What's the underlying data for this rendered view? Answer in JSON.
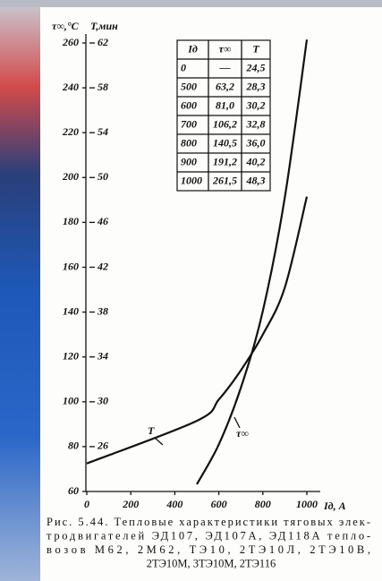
{
  "chart_data": {
    "type": "line",
    "y_label": "τ∞,°C",
    "y2_label": "T,мин",
    "x_label": "Iд, A",
    "x": [
      0,
      500,
      600,
      700,
      800,
      900,
      1000
    ],
    "series": [
      {
        "name": "τ∞",
        "color": "#111111",
        "values": [
          null,
          63.2,
          81.0,
          106.2,
          140.5,
          191.2,
          261.5
        ],
        "value_labels": [
          "—",
          "63,2",
          "81,0",
          "106,2",
          "140,5",
          "191,2",
          "261,5"
        ]
      },
      {
        "name": "T",
        "color": "#111111",
        "axis": "y2",
        "values": [
          24.5,
          28.3,
          30.2,
          32.8,
          36.0,
          40.2,
          48.3
        ],
        "value_labels": [
          "24,5",
          "28,3",
          "30,2",
          "32,8",
          "36,0",
          "40,2",
          "48,3"
        ]
      }
    ],
    "table_x_header": "Iд",
    "xlim": [
      0,
      1000
    ],
    "xticks": [
      0,
      200,
      400,
      600,
      800,
      1000
    ],
    "ylim": [
      60,
      260
    ],
    "yticks": [
      60,
      80,
      100,
      120,
      140,
      160,
      180,
      200,
      220,
      240,
      260
    ],
    "y2lim": [
      22,
      62
    ],
    "y2ticks": [
      26,
      30,
      34,
      38,
      42,
      46,
      50,
      54,
      58,
      62
    ],
    "caption": [
      "Рис. 5.44. Тепловые характеристики тяговых элек-",
      "тродвигателей ЭД107, ЭД107А, ЭД118А тепло-",
      "возов М62, 2М62, ТЭ10, 2ТЭ10Л, 2ТЭ10В,",
      "2ТЭ10М, 3ТЭ10М, 2ТЭ116"
    ]
  }
}
